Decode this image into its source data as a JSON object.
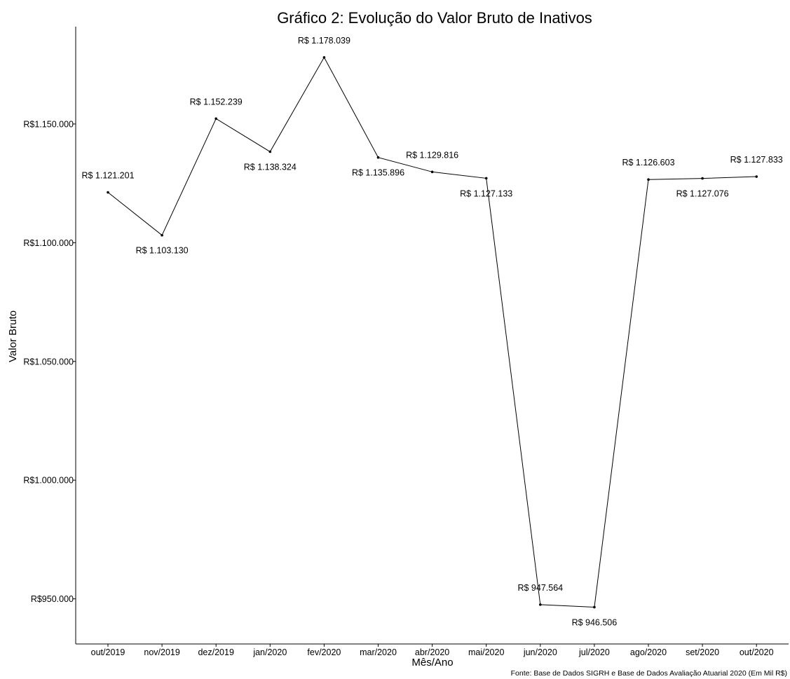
{
  "chart_data": {
    "type": "line",
    "title": "Gráfico 2: Evolução do Valor Bruto de Inativos",
    "xlabel": "Mês/Ano",
    "ylabel": "Valor Bruto",
    "source": "Fonte: Base de Dados SIGRH e Base de Dados Avaliação Atuarial 2020 (Em Mil R$)",
    "categories": [
      "out/2019",
      "nov/2019",
      "dez/2019",
      "jan/2020",
      "fev/2020",
      "mar/2020",
      "abr/2020",
      "mai/2020",
      "jun/2020",
      "jul/2020",
      "ago/2020",
      "set/2020",
      "out/2020"
    ],
    "values": [
      1121201,
      1103130,
      1152239,
      1138324,
      1178039,
      1135896,
      1129816,
      1127133,
      947564,
      946506,
      1126603,
      1127076,
      1127833
    ],
    "data_labels": [
      "R$ 1.121.201",
      "R$ 1.103.130",
      "R$ 1.152.239",
      "R$ 1.138.324",
      "R$ 1.178.039",
      "R$ 1.135.896",
      "R$ 1.129.816",
      "R$ 1.127.133",
      "R$ 947.564",
      "R$ 946.506",
      "R$ 1.126.603",
      "R$ 1.127.076",
      "R$ 1.127.833"
    ],
    "label_positions": [
      "above",
      "below",
      "above",
      "below",
      "above",
      "below",
      "above",
      "below",
      "above",
      "below",
      "above",
      "below",
      "above"
    ],
    "yticks": [
      950000,
      1000000,
      1050000,
      1100000,
      1150000
    ],
    "ytick_labels": [
      "R$950.000",
      "R$1.000.000",
      "R$1.050.000",
      "R$1.100.000",
      "R$1.150.000"
    ],
    "ylim": [
      931000,
      1191000
    ],
    "grid": false,
    "legend": "none"
  }
}
